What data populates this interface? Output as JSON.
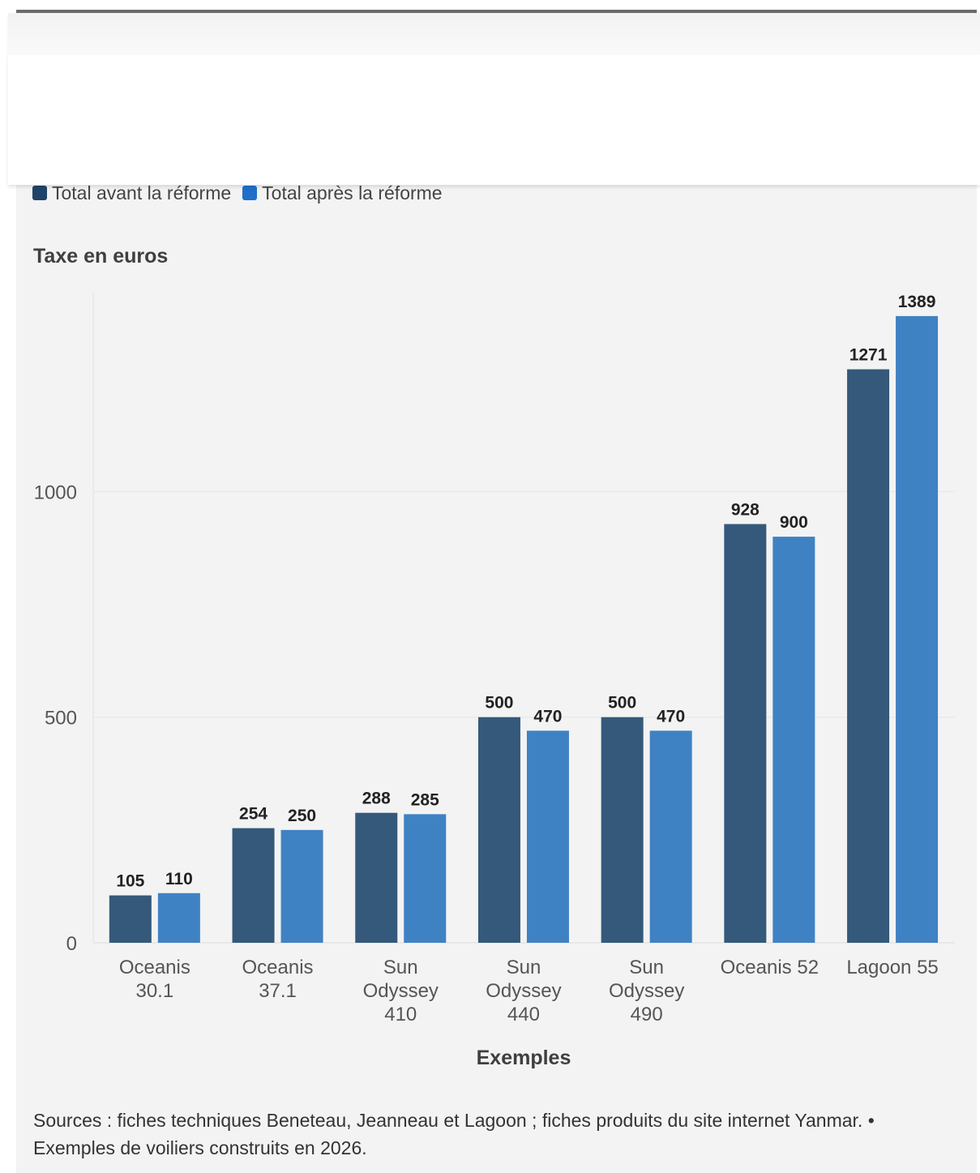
{
  "legend": {
    "items": [
      {
        "label": "Total avant la réforme",
        "color": "#34597a"
      },
      {
        "label": "Total après la réforme",
        "color": "#3f82c4"
      }
    ]
  },
  "source_note": "Sources : fiches techniques Beneteau, Jeanneau et Lagoon ; fiches produits du site internet Yanmar. • Exemples de voiliers construits en 2026.",
  "chart_data": {
    "type": "bar",
    "ylabel": "Taxe en euros",
    "xlabel": "Exemples",
    "ylim": [
      0,
      1450
    ],
    "yticks": [
      0,
      500,
      1000
    ],
    "grid": true,
    "legend_position": "top-left",
    "categories": [
      [
        "Oceanis",
        "30.1"
      ],
      [
        "Oceanis",
        "37.1"
      ],
      [
        "Sun",
        "Odyssey",
        "410"
      ],
      [
        "Sun",
        "Odyssey",
        "440"
      ],
      [
        "Sun",
        "Odyssey",
        "490"
      ],
      [
        "Oceanis 52"
      ],
      [
        "Lagoon 55"
      ]
    ],
    "series": [
      {
        "name": "Total avant la réforme",
        "color": "#34597a",
        "values": [
          105,
          254,
          288,
          500,
          500,
          928,
          1271
        ]
      },
      {
        "name": "Total après la réforme",
        "color": "#3f82c4",
        "values": [
          110,
          250,
          285,
          470,
          470,
          900,
          1389
        ]
      }
    ]
  }
}
